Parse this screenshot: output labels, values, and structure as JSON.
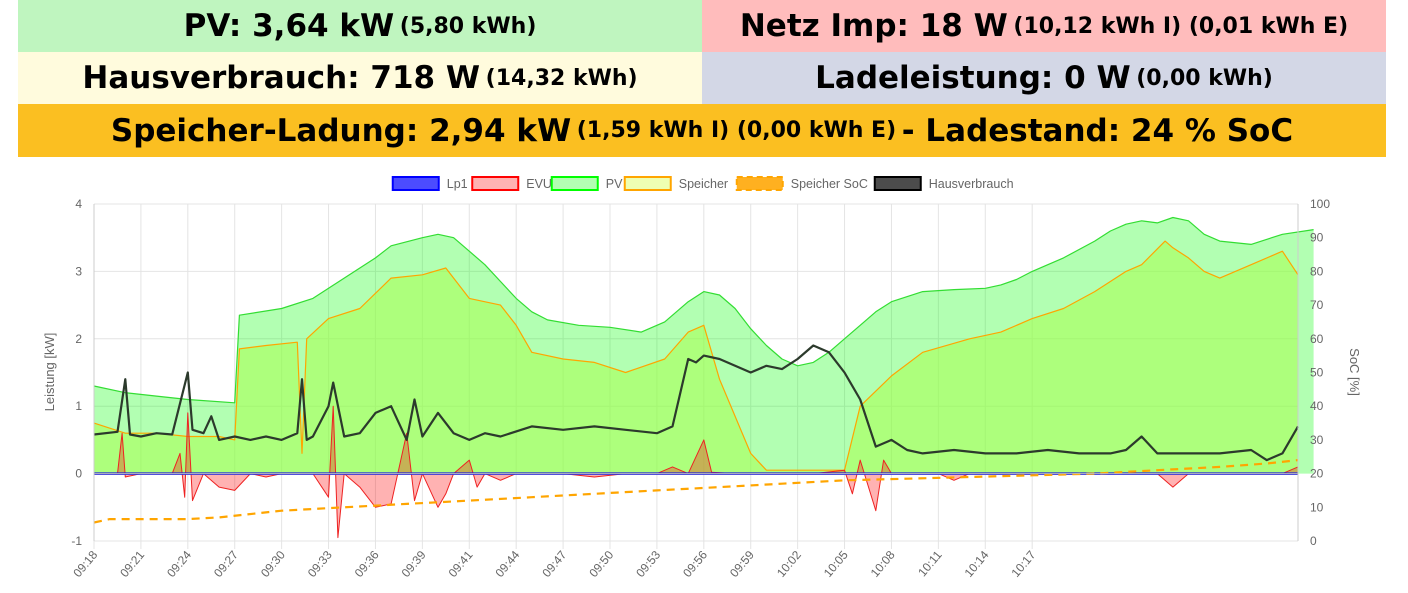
{
  "tiles": {
    "pv": {
      "label": "PV: 3,64 kW",
      "detail": "(5,80 kWh)"
    },
    "netz": {
      "label": "Netz Imp: 18 W",
      "detail": "(10,12 kWh I) (0,01 kWh E)"
    },
    "haus": {
      "label": "Hausverbrauch: 718 W",
      "detail": "(14,32 kWh)"
    },
    "lade": {
      "label": "Ladeleistung: 0 W",
      "detail": "(0,00 kWh)"
    },
    "speicher": {
      "label": "Speicher-Ladung: 2,94 kW",
      "detail": "(1,59 kWh I) (0,00 kWh E)",
      "suffix": "- Ladestand: 24 % SoC"
    }
  },
  "colors": {
    "pv_tile": "#bff5bf",
    "netz_tile": "#ffbcbc",
    "haus_tile": "#fffbdd",
    "lade_tile": "#d3d7e6",
    "speicher_tile": "#fbbf21",
    "lp1": "#0000ff",
    "evu": "#ff0000",
    "pv": "#00ff00",
    "speicher": "#ffa500",
    "soc": "#ffa500",
    "haus": "#000000"
  },
  "chart_data": {
    "type": "line",
    "title": "",
    "ylabel": "Leistung [kW]",
    "y2label": "SoC [%]",
    "ylim": [
      -1,
      4
    ],
    "y2lim": [
      0,
      100
    ],
    "yticks": [
      "4",
      "3",
      "2",
      "1",
      "0",
      "-1"
    ],
    "y2ticks": [
      "100",
      "90",
      "80",
      "70",
      "60",
      "50",
      "40",
      "30",
      "20",
      "10",
      "0"
    ],
    "xticks": [
      "09:18",
      "09:21",
      "09:24",
      "09:27",
      "09:30",
      "09:33",
      "09:36",
      "09:39",
      "09:41",
      "09:44",
      "09:47",
      "09:50",
      "09:53",
      "09:56",
      "09:59",
      "10:02",
      "10:05",
      "10:08",
      "10:11",
      "10:14",
      "10:17"
    ],
    "x_start_min": 0,
    "x_end_min": 59.5,
    "grid": true,
    "legend_position": "top",
    "legend": [
      {
        "name": "Lp1",
        "fill": "rgba(0,0,255,0.7)",
        "stroke": "#0000ff"
      },
      {
        "name": "EVU",
        "fill": "rgba(255,0,0,0.3)",
        "stroke": "#ff0000"
      },
      {
        "name": "PV",
        "fill": "rgba(0,255,0,0.3)",
        "stroke": "#00ff00"
      },
      {
        "name": "Speicher",
        "fill": "rgba(200,255,0,0.3)",
        "stroke": "#ffa500"
      },
      {
        "name": "Speicher SoC",
        "fill": "#ffa500",
        "stroke": "#ffa500"
      },
      {
        "name": "Hausverbrauch",
        "fill": "rgba(0,0,0,0.7)",
        "stroke": "#000000"
      }
    ],
    "series": [
      {
        "name": "PV",
        "axis": "left",
        "points": [
          [
            0,
            1.3
          ],
          [
            2,
            1.2
          ],
          [
            4,
            1.15
          ],
          [
            6,
            1.1
          ],
          [
            9,
            1.05
          ],
          [
            9.3,
            2.35
          ],
          [
            12,
            2.45
          ],
          [
            14,
            2.6
          ],
          [
            16,
            2.9
          ],
          [
            18,
            3.2
          ],
          [
            19,
            3.38
          ],
          [
            21,
            3.5
          ],
          [
            22,
            3.55
          ],
          [
            23,
            3.5
          ],
          [
            24,
            3.3
          ],
          [
            25,
            3.1
          ],
          [
            26,
            2.85
          ],
          [
            27,
            2.6
          ],
          [
            28,
            2.4
          ],
          [
            29,
            2.28
          ],
          [
            31,
            2.2
          ],
          [
            33,
            2.17
          ],
          [
            35,
            2.1
          ],
          [
            36.5,
            2.25
          ],
          [
            38,
            2.55
          ],
          [
            39,
            2.7
          ],
          [
            40,
            2.65
          ],
          [
            41,
            2.45
          ],
          [
            42,
            2.15
          ],
          [
            43,
            1.9
          ],
          [
            44,
            1.7
          ],
          [
            45,
            1.6
          ],
          [
            46,
            1.65
          ],
          [
            47,
            1.8
          ],
          [
            48,
            2.0
          ],
          [
            49,
            2.2
          ],
          [
            50,
            2.4
          ],
          [
            51,
            2.55
          ],
          [
            53,
            2.7
          ],
          [
            55,
            2.73
          ],
          [
            57,
            2.75
          ],
          [
            58,
            2.8
          ],
          [
            59,
            2.88
          ],
          [
            60,
            3.0
          ],
          [
            61,
            3.1
          ],
          [
            62,
            3.2
          ],
          [
            64,
            3.45
          ],
          [
            65,
            3.6
          ],
          [
            66,
            3.7
          ],
          [
            67,
            3.75
          ],
          [
            68,
            3.72
          ],
          [
            69,
            3.8
          ],
          [
            70,
            3.75
          ],
          [
            71,
            3.55
          ],
          [
            72,
            3.45
          ],
          [
            74,
            3.4
          ],
          [
            76,
            3.55
          ],
          [
            78,
            3.62
          ]
        ]
      },
      {
        "name": "Speicher",
        "axis": "left",
        "points": [
          [
            0,
            0.75
          ],
          [
            2,
            0.6
          ],
          [
            4,
            0.6
          ],
          [
            6,
            0.55
          ],
          [
            8,
            0.55
          ],
          [
            9,
            0.5
          ],
          [
            9.3,
            1.85
          ],
          [
            11,
            1.9
          ],
          [
            13,
            1.95
          ],
          [
            13.3,
            0.3
          ],
          [
            13.6,
            2.0
          ],
          [
            15,
            2.3
          ],
          [
            17,
            2.45
          ],
          [
            19,
            2.9
          ],
          [
            21,
            2.95
          ],
          [
            22.5,
            3.05
          ],
          [
            24,
            2.6
          ],
          [
            26,
            2.5
          ],
          [
            27,
            2.2
          ],
          [
            28,
            1.8
          ],
          [
            30,
            1.7
          ],
          [
            32,
            1.65
          ],
          [
            34,
            1.5
          ],
          [
            36.5,
            1.7
          ],
          [
            38,
            2.1
          ],
          [
            39,
            2.2
          ],
          [
            40,
            1.4
          ],
          [
            42,
            0.3
          ],
          [
            43,
            0.05
          ],
          [
            45,
            0.05
          ],
          [
            47,
            0.05
          ],
          [
            48,
            0.05
          ],
          [
            49,
            1.0
          ],
          [
            51,
            1.45
          ],
          [
            53,
            1.8
          ],
          [
            56,
            2.0
          ],
          [
            58,
            2.1
          ],
          [
            60,
            2.3
          ],
          [
            62,
            2.45
          ],
          [
            64,
            2.7
          ],
          [
            66,
            3.0
          ],
          [
            67,
            3.1
          ],
          [
            68.5,
            3.45
          ],
          [
            69,
            3.35
          ],
          [
            70,
            3.2
          ],
          [
            71,
            3.0
          ],
          [
            72,
            2.9
          ],
          [
            74,
            3.1
          ],
          [
            76,
            3.3
          ],
          [
            77,
            2.95
          ]
        ]
      },
      {
        "name": "EVU",
        "axis": "left",
        "points": [
          [
            0,
            0
          ],
          [
            1.5,
            0
          ],
          [
            1.8,
            0.6
          ],
          [
            2,
            -0.05
          ],
          [
            3,
            0
          ],
          [
            5,
            0
          ],
          [
            5.5,
            0.3
          ],
          [
            5.8,
            -0.35
          ],
          [
            6,
            0.9
          ],
          [
            6.3,
            -0.4
          ],
          [
            7,
            0
          ],
          [
            8,
            -0.2
          ],
          [
            9,
            -0.25
          ],
          [
            10,
            0
          ],
          [
            11,
            -0.05
          ],
          [
            12,
            0
          ],
          [
            14,
            0
          ],
          [
            15,
            -0.35
          ],
          [
            15.3,
            1.0
          ],
          [
            15.6,
            -0.95
          ],
          [
            16,
            0
          ],
          [
            17,
            -0.2
          ],
          [
            18,
            -0.5
          ],
          [
            19,
            -0.45
          ],
          [
            20,
            0.6
          ],
          [
            20.5,
            -0.4
          ],
          [
            21,
            0
          ],
          [
            22,
            -0.5
          ],
          [
            22.5,
            -0.3
          ],
          [
            23,
            0
          ],
          [
            24,
            0.2
          ],
          [
            24.5,
            -0.2
          ],
          [
            25,
            0
          ],
          [
            26,
            -0.1
          ],
          [
            27,
            0
          ],
          [
            30,
            0
          ],
          [
            32,
            -0.05
          ],
          [
            34,
            0
          ],
          [
            36,
            0
          ],
          [
            37,
            0.1
          ],
          [
            38,
            0
          ],
          [
            39,
            0.5
          ],
          [
            39.5,
            0.02
          ],
          [
            41,
            0
          ],
          [
            44,
            0
          ],
          [
            46,
            0
          ],
          [
            48,
            0.05
          ],
          [
            48.5,
            -0.3
          ],
          [
            49,
            0.2
          ],
          [
            50,
            -0.55
          ],
          [
            50.5,
            0.2
          ],
          [
            51,
            0
          ],
          [
            52,
            0
          ],
          [
            54,
            0
          ],
          [
            55,
            -0.1
          ],
          [
            56,
            0
          ],
          [
            58,
            0
          ],
          [
            59,
            0
          ],
          [
            60,
            0
          ],
          [
            62,
            0
          ],
          [
            64,
            0
          ],
          [
            66,
            0
          ],
          [
            68,
            0
          ],
          [
            69,
            -0.2
          ],
          [
            70,
            0
          ],
          [
            72,
            0
          ],
          [
            74,
            0
          ],
          [
            76,
            0
          ],
          [
            77,
            0.1
          ]
        ]
      },
      {
        "name": "Hausverbrauch",
        "axis": "left",
        "points": [
          [
            0,
            0.58
          ],
          [
            1.5,
            0.62
          ],
          [
            2,
            1.4
          ],
          [
            2.3,
            0.58
          ],
          [
            3,
            0.55
          ],
          [
            4,
            0.6
          ],
          [
            5,
            0.58
          ],
          [
            6,
            1.5
          ],
          [
            6.3,
            0.65
          ],
          [
            7,
            0.6
          ],
          [
            7.5,
            0.85
          ],
          [
            8,
            0.5
          ],
          [
            9,
            0.55
          ],
          [
            10,
            0.5
          ],
          [
            11,
            0.55
          ],
          [
            12,
            0.5
          ],
          [
            13,
            0.6
          ],
          [
            13.3,
            1.4
          ],
          [
            13.6,
            0.5
          ],
          [
            14,
            0.55
          ],
          [
            15,
            1.0
          ],
          [
            15.3,
            1.35
          ],
          [
            16,
            0.55
          ],
          [
            17,
            0.6
          ],
          [
            18,
            0.9
          ],
          [
            19,
            1.0
          ],
          [
            20,
            0.5
          ],
          [
            20.5,
            1.1
          ],
          [
            21,
            0.55
          ],
          [
            22,
            0.9
          ],
          [
            23,
            0.6
          ],
          [
            24,
            0.5
          ],
          [
            25,
            0.6
          ],
          [
            26,
            0.55
          ],
          [
            28,
            0.7
          ],
          [
            30,
            0.65
          ],
          [
            32,
            0.7
          ],
          [
            34,
            0.65
          ],
          [
            36,
            0.6
          ],
          [
            37,
            0.7
          ],
          [
            38,
            1.7
          ],
          [
            38.5,
            1.65
          ],
          [
            39,
            1.75
          ],
          [
            40,
            1.7
          ],
          [
            41,
            1.6
          ],
          [
            42,
            1.5
          ],
          [
            43,
            1.6
          ],
          [
            44,
            1.55
          ],
          [
            45,
            1.7
          ],
          [
            46,
            1.9
          ],
          [
            47,
            1.8
          ],
          [
            48,
            1.5
          ],
          [
            49,
            1.1
          ],
          [
            50,
            0.4
          ],
          [
            51,
            0.5
          ],
          [
            52,
            0.35
          ],
          [
            53,
            0.3
          ],
          [
            55,
            0.35
          ],
          [
            57,
            0.3
          ],
          [
            59,
            0.3
          ],
          [
            61,
            0.35
          ],
          [
            63,
            0.3
          ],
          [
            65,
            0.3
          ],
          [
            66,
            0.35
          ],
          [
            67,
            0.55
          ],
          [
            68,
            0.3
          ],
          [
            70,
            0.3
          ],
          [
            72,
            0.3
          ],
          [
            74,
            0.35
          ],
          [
            75,
            0.2
          ],
          [
            76,
            0.3
          ],
          [
            77,
            0.7
          ]
        ]
      },
      {
        "name": "Lp1",
        "axis": "left",
        "points": [
          [
            0,
            0
          ],
          [
            77,
            0
          ]
        ]
      },
      {
        "name": "Speicher SoC",
        "axis": "right",
        "points": [
          [
            0,
            5.5
          ],
          [
            1,
            6.5
          ],
          [
            6,
            6.5
          ],
          [
            8,
            7
          ],
          [
            12,
            9
          ],
          [
            16,
            10
          ],
          [
            20,
            11
          ],
          [
            24,
            12
          ],
          [
            28,
            13
          ],
          [
            32,
            14
          ],
          [
            36,
            15
          ],
          [
            40,
            16
          ],
          [
            44,
            17
          ],
          [
            48,
            18
          ],
          [
            52,
            18.5
          ],
          [
            56,
            19
          ],
          [
            60,
            19.5
          ],
          [
            64,
            20
          ],
          [
            68,
            21
          ],
          [
            72,
            22
          ],
          [
            75,
            23
          ],
          [
            77,
            24
          ]
        ]
      }
    ]
  }
}
